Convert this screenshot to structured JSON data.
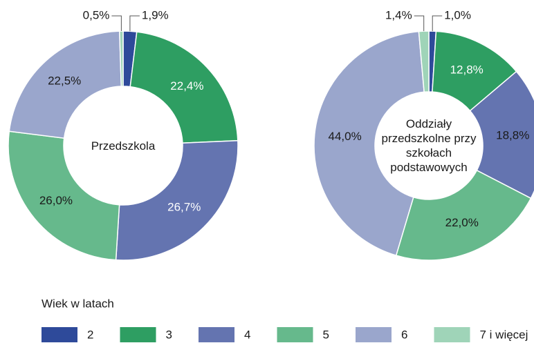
{
  "chart_data": [
    {
      "type": "donut",
      "center_label": "Przedszkola",
      "values": [
        1.9,
        22.4,
        26.7,
        26.0,
        22.5,
        0.5
      ],
      "value_labels": [
        "1,9%",
        "22,4%",
        "26,7%",
        "26,0%",
        "22,5%",
        "0,5%"
      ],
      "label_colors": [
        "#1a1a1a",
        "#ffffff",
        "#ffffff",
        "#1a1a1a",
        "#1a1a1a",
        "#1a1a1a"
      ]
    },
    {
      "type": "donut",
      "center_label": "Oddziały przedszkolne przy szkołach podstawowych",
      "values": [
        1.0,
        12.8,
        18.8,
        22.0,
        44.0,
        1.4
      ],
      "value_labels": [
        "1,0%",
        "12,8%",
        "18,8%",
        "22,0%",
        "44,0%",
        "1,4%"
      ],
      "label_colors": [
        "#1a1a1a",
        "#ffffff",
        "#1a1a1a",
        "#1a1a1a",
        "#1a1a1a",
        "#1a1a1a"
      ]
    }
  ],
  "legend": {
    "title": "Wiek w latach",
    "categories": [
      "2",
      "3",
      "4",
      "5",
      "6",
      "7 i więcej"
    ],
    "colors": [
      "#2e4a9a",
      "#2e9e62",
      "#6474b0",
      "#66b98c",
      "#9aa6cc",
      "#9fd4b8"
    ]
  }
}
